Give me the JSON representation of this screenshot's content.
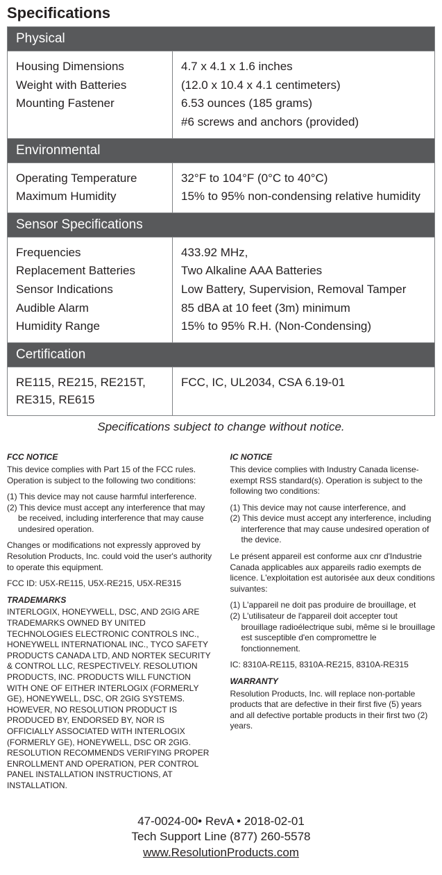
{
  "title": "Specifications",
  "notice": "Specifications subject to change without notice.",
  "colors": {
    "section_bg": "#58595b",
    "section_fg": "#ffffff",
    "border": "#808285",
    "text": "#231f20",
    "page_bg": "#ffffff"
  },
  "sections": [
    {
      "name": "Physical",
      "rows": [
        {
          "label": "Housing Dimensions",
          "value": "4.7 x 4.1 x 1.6 inches"
        },
        {
          "label": "",
          "value": "(12.0 x 10.4 x 4.1 centimeters)"
        },
        {
          "label": "Weight with Batteries",
          "value": "6.53 ounces (185 grams)"
        },
        {
          "label": "Mounting Fastener",
          "value": "#6 screws and anchors (provided)"
        }
      ]
    },
    {
      "name": "Environmental",
      "rows": [
        {
          "label": "Operating Temperature",
          "value": "32°F to 104°F  (0°C to 40°C)"
        },
        {
          "label": "Maximum Humidity",
          "value": "15% to 95% non-condensing relative humidity"
        }
      ]
    },
    {
      "name": "Sensor Specifications",
      "rows": [
        {
          "label": "Frequencies",
          "value": "433.92 MHz,"
        },
        {
          "label": "Replacement Batteries",
          "value": "Two Alkaline AAA Batteries"
        },
        {
          "label": "Sensor Indications",
          "value": "Low Battery, Supervision, Removal Tamper"
        },
        {
          "label": "Audible Alarm",
          "value": "85 dBA at 10 feet (3m) minimum"
        },
        {
          "label": "Humidity Range",
          "value": "15% to 95% R.H. (Non-Condensing)"
        }
      ]
    },
    {
      "name": "Certification",
      "rows": [
        {
          "label": "RE115, RE215, RE215T, RE315, RE615",
          "value": "FCC, IC, UL2034, CSA 6.19-01"
        }
      ]
    }
  ],
  "legal": {
    "left": {
      "fcc_title": "FCC NOTICE",
      "fcc_p1": "This device complies with Part 15 of the FCC rules. Operation is subject to the following two conditions:",
      "fcc_c1": "(1) This device may not cause harmful interference.",
      "fcc_c2": "(2) This device must accept any interference that may be received, including interference that may cause undesired operation.",
      "fcc_p2": "Changes or modifications not expressly approved by Resolution Products, Inc. could void the user's authority to operate this equipment.",
      "fcc_p3": "FCC ID: U5X-RE115, U5X-RE215, U5X-RE315",
      "tm_title": "TRADEMARKS",
      "tm_body": "INTERLOGIX, HONEYWELL, DSC, AND 2GIG ARE TRADEMARKS OWNED BY UNITED TECHNOLOGIES ELECTRONIC CONTROLS INC., HONEYWELL INTERNATIONAL INC., TYCO SAFETY PRODUCTS CANADA LTD, AND NORTEK SECURITY & CONTROL LLC, RESPECTIVELY. RESOLUTION PRODUCTS, INC. PRODUCTS WILL FUNCTION WITH ONE OF EITHER INTERLOGIX (FORMERLY GE), HONEYWELL, DSC, OR 2GIG SYSTEMS. HOWEVER, NO RESOLUTION PRODUCT IS PRODUCED BY, ENDORSED BY, NOR IS OFFICIALLY ASSOCIATED WITH INTERLOGIX (FORMERLY GE), HONEYWELL, DSC OR 2GIG. RESOLUTION RECOMMENDS VERIFYING PROPER ENROLLMENT AND OPERATION, PER CONTROL PANEL INSTALLATION INSTRUCTIONS, AT INSTALLATION."
    },
    "right": {
      "ic_title": "IC NOTICE",
      "ic_p1": "This device complies with Industry Canada license-exempt RSS standard(s). Operation is subject to the following two conditions:",
      "ic_c1": "(1) This device may not cause interference, and",
      "ic_c2": "(2) This device must accept any interference, including interference that may cause undesired operation of the device.",
      "ic_p2": "Le présent appareil est conforme aux cnr d'Industrie Canada applicables aux appareils radio exempts de licence. L'exploitation est autorisée aux deux conditions suivantes:",
      "ic_c3": "(1) L'appareil ne doit pas produire de brouillage, et",
      "ic_c4": "(2) L'utilisateur de l'appareil doit accepter tout brouillage radioélectrique subi, même si le brouillage est susceptible d'en compromettre le fonctionnement.",
      "ic_p3": "IC: 8310A-RE115, 8310A-RE215, 8310A-RE315",
      "w_title": "WARRANTY",
      "w_body": "Resolution Products, Inc. will replace non-portable products that are defective in their first five (5) years and all defective portable products in their first two (2) years."
    }
  },
  "footer": {
    "line1": "47-0024-00• RevA • 2018-02-01",
    "line2": "Tech Support Line (877) 260-5578",
    "link": "www.ResolutionProducts.com"
  }
}
